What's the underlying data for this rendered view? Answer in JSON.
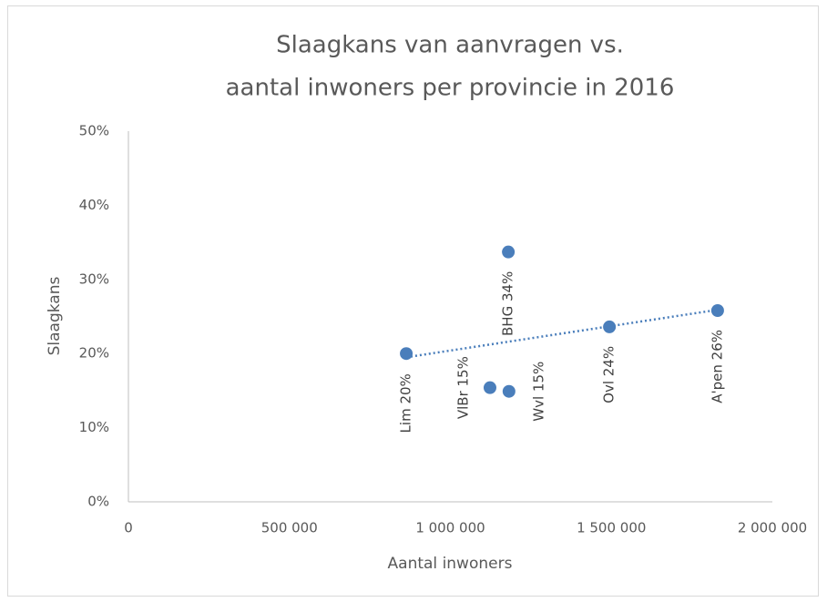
{
  "chart_data": {
    "type": "scatter",
    "title": [
      "Slaagkans van aanvragen vs.",
      "aantal inwoners per provincie in 2016"
    ],
    "x_label": "Aantal inwoners",
    "y_label": "Slaagkans",
    "x": [
      863000,
      1123000,
      1182000,
      1180000,
      1494000,
      1830000
    ],
    "values": [
      20.0,
      15.4,
      14.9,
      33.7,
      23.6,
      25.8
    ],
    "value_labels": [
      "Lim 20%",
      "VlBr 15%",
      "Wvl 15%",
      "BHG 34%",
      "Ovl 24%",
      "A'pen 26%"
    ],
    "color": "#4a7ebb",
    "trendline": {
      "x": [
        863000,
        1830000
      ],
      "values": [
        19.5,
        25.9
      ]
    },
    "xlim": [
      0,
      2000000
    ],
    "xticks": [
      0,
      {
        "value": 500000,
        "label": "500 000"
      },
      {
        "value": 1000000,
        "label": "1 000 000"
      },
      {
        "value": 1500000,
        "label": "1 500 000"
      },
      {
        "value": 2000000,
        "label": "2 000 000"
      }
    ],
    "ylim": [
      0,
      50
    ],
    "yticks": [
      {
        "value": 0,
        "label": "0%"
      },
      {
        "value": 10,
        "label": "10%"
      },
      {
        "value": 20,
        "label": "20%"
      },
      {
        "value": 30,
        "label": "30%"
      },
      {
        "value": 40,
        "label": "40%"
      },
      {
        "value": 50,
        "label": "50%"
      }
    ],
    "grid": false
  }
}
